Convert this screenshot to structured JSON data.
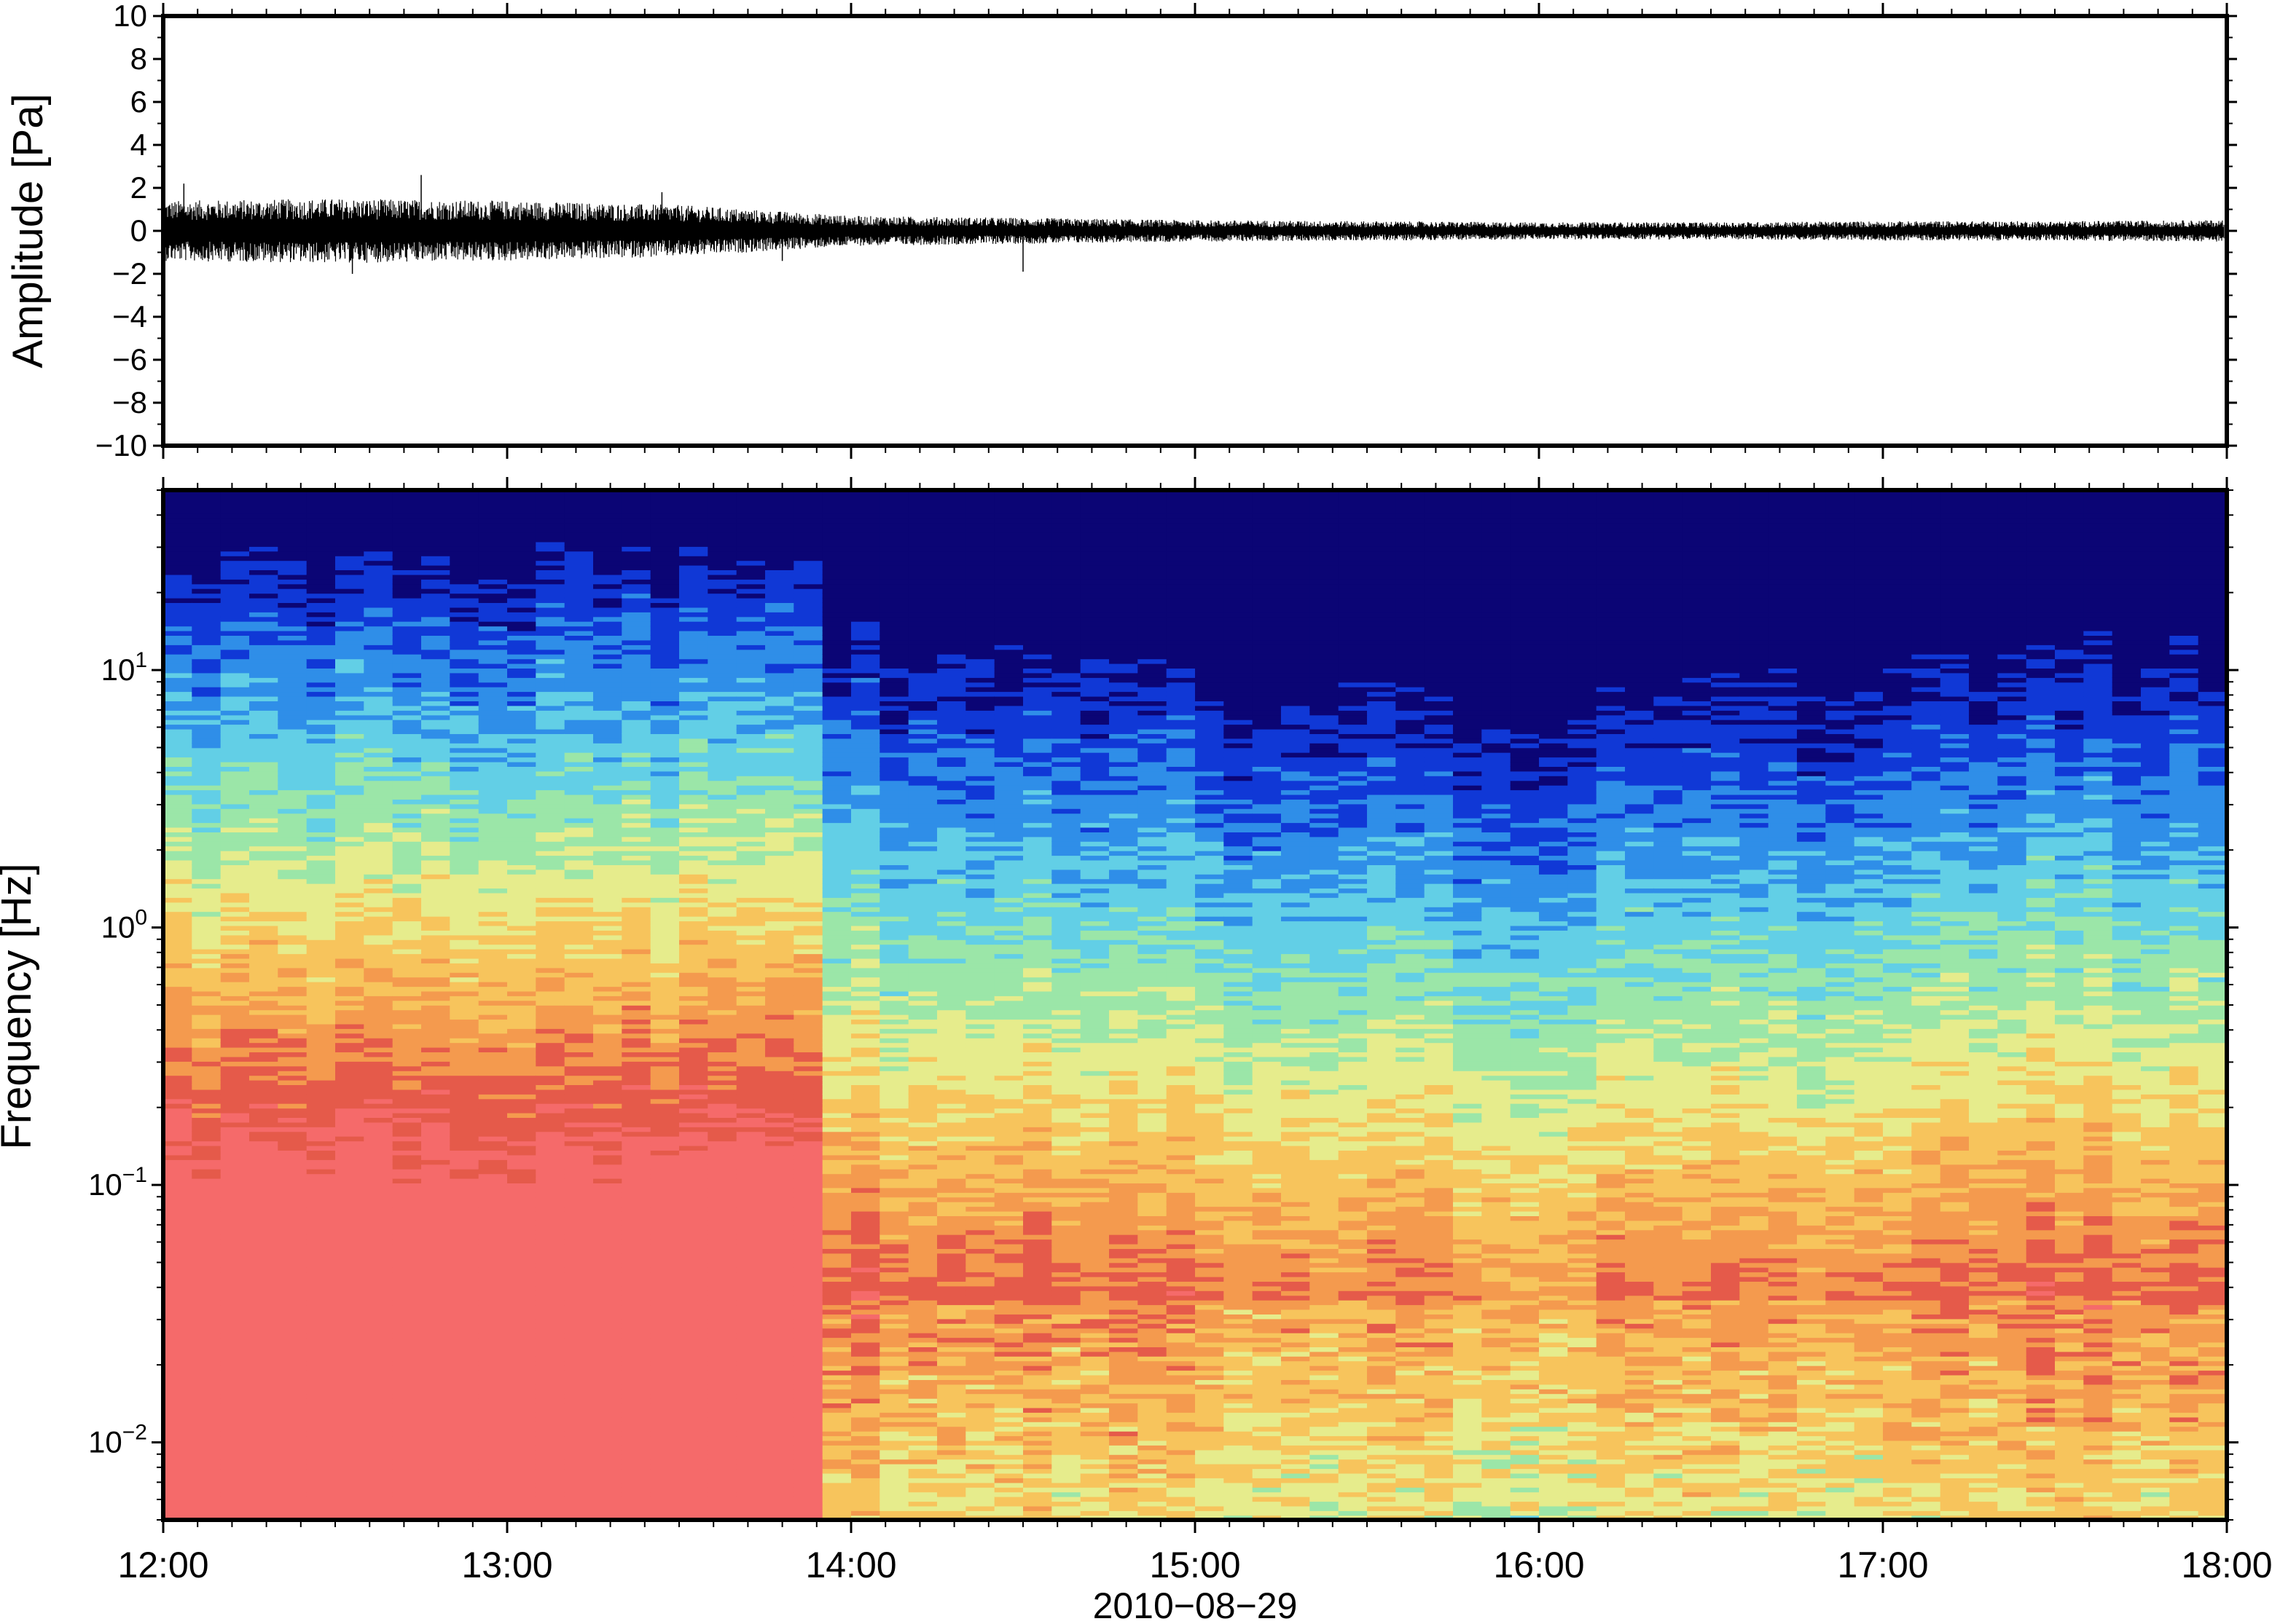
{
  "chart_data": [
    {
      "type": "line",
      "panel": "waveform",
      "ylabel": "Amplitude [Pa]",
      "ylim": [
        -10,
        10
      ],
      "yticks": [
        10,
        8,
        6,
        4,
        2,
        0,
        -2,
        -4,
        -6,
        -8,
        -10
      ],
      "ytick_labels": [
        "10",
        "8",
        "6",
        "4",
        "2",
        "0",
        "−2",
        "−4",
        "−6",
        "−8",
        "−10"
      ],
      "x_range": [
        "12:00",
        "18:00"
      ],
      "grid": false,
      "envelope": {
        "description_points_hours": [
          12.0,
          12.5,
          13.0,
          13.5,
          14.0,
          14.5,
          15.0,
          15.5,
          16.0,
          16.5,
          17.0,
          17.5,
          18.0
        ],
        "amplitude_pa": [
          1.4,
          1.5,
          1.4,
          1.2,
          0.7,
          0.6,
          0.5,
          0.45,
          0.4,
          0.4,
          0.45,
          0.45,
          0.5
        ]
      },
      "spikes": [
        {
          "time_hours": 12.06,
          "value": 2.2
        },
        {
          "time_hours": 12.75,
          "value": 2.6
        },
        {
          "time_hours": 13.45,
          "value": 1.8
        },
        {
          "time_hours": 12.55,
          "value": -2.0
        },
        {
          "time_hours": 14.5,
          "value": -1.9
        },
        {
          "time_hours": 13.8,
          "value": -1.4
        }
      ]
    },
    {
      "type": "heatmap",
      "panel": "spectrogram",
      "ylabel": "Frequency [Hz]",
      "yscale": "log",
      "ylim": [
        0.005,
        50
      ],
      "yticks": [
        {
          "base": "10",
          "exp": "1",
          "value": 10
        },
        {
          "base": "10",
          "exp": "0",
          "value": 1
        },
        {
          "base": "10",
          "exp": "−1",
          "value": 0.1
        },
        {
          "base": "10",
          "exp": "−2",
          "value": 0.01
        }
      ],
      "x_range": [
        "12:00",
        "18:00"
      ],
      "colormap": [
        "#0b0575",
        "#1038d6",
        "#2f8ee8",
        "#62cfe6",
        "#9be6a8",
        "#e6ec8c",
        "#f7c45c",
        "#f49a4e",
        "#e55a4a",
        "#f56a6a"
      ],
      "intensity_profile": {
        "columns_hours": [
          12.0,
          13.0,
          13.85,
          14.0,
          15.0,
          16.0,
          17.0,
          18.0
        ],
        "blue_edge_hz": [
          14,
          14,
          13,
          7,
          5,
          3.5,
          5,
          7
        ]
      }
    }
  ],
  "xaxis": {
    "tick_labels": [
      "12:00",
      "13:00",
      "14:00",
      "15:00",
      "16:00",
      "17:00",
      "18:00"
    ],
    "date_label": "2010−08−29"
  },
  "colors": {
    "trace": "#000000",
    "frame": "#000000",
    "background": "#ffffff"
  }
}
